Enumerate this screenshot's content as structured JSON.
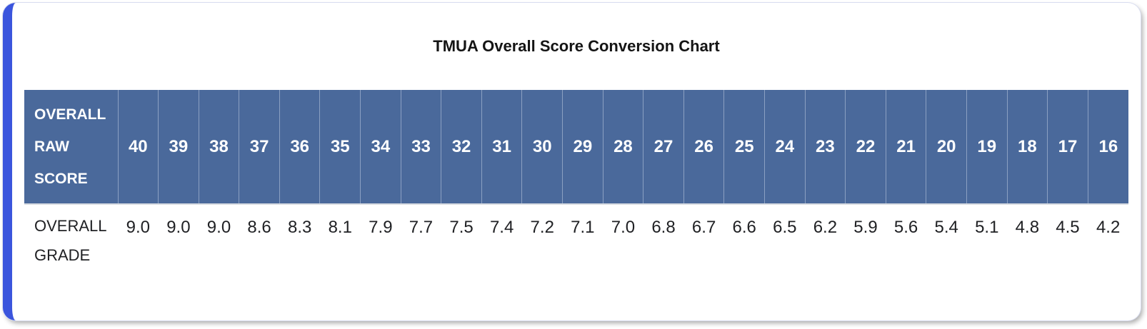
{
  "title": "TMUA Overall Score Conversion Chart",
  "chart_data": {
    "type": "table",
    "title": "TMUA Overall Score Conversion Chart",
    "header_label": "OVERALL RAW SCORE",
    "row_label": "OVERALL GRADE",
    "raw_scores": [
      "40",
      "39",
      "38",
      "37",
      "36",
      "35",
      "34",
      "33",
      "32",
      "31",
      "30",
      "29",
      "28",
      "27",
      "26",
      "25",
      "24",
      "23",
      "22",
      "21",
      "20",
      "19",
      "18",
      "17",
      "16"
    ],
    "grades": [
      "9.0",
      "9.0",
      "9.0",
      "8.6",
      "8.3",
      "8.1",
      "7.9",
      "7.7",
      "7.5",
      "7.4",
      "7.2",
      "7.1",
      "7.0",
      "6.8",
      "6.7",
      "6.6",
      "6.5",
      "6.2",
      "5.9",
      "5.6",
      "5.4",
      "5.1",
      "4.8",
      "4.5",
      "4.2"
    ]
  },
  "colors": {
    "header_bg": "#4a699b",
    "header_divider": "#8ba0c2",
    "header_text": "#ffffff",
    "accent": "#3b55dd",
    "body_text": "#202124",
    "header_underline": "#d9dce1"
  }
}
